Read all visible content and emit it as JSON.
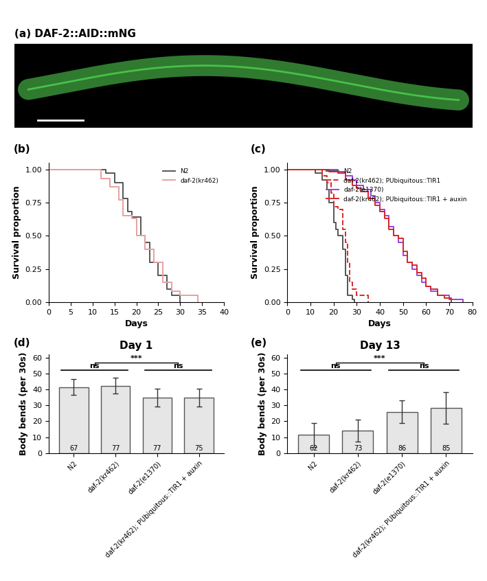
{
  "chart_data": [
    {
      "type": "image",
      "panel": "(a)",
      "title": "DAF-2::AID::mNG"
    },
    {
      "type": "step",
      "panel": "(b)",
      "xlabel": "Days",
      "ylabel": "Survival proportion",
      "xlim": [
        0,
        40
      ],
      "xticks": [
        0,
        5,
        10,
        15,
        20,
        25,
        30,
        35,
        40
      ],
      "ylim": [
        0,
        1.05
      ],
      "yticks": [
        {
          "value": 0,
          "label": "0.00"
        },
        {
          "value": 0.25,
          "label": "0.25"
        },
        {
          "value": 0.5,
          "label": "0.50"
        },
        {
          "value": 0.75,
          "label": "0.75"
        },
        {
          "value": 1.0,
          "label": "1.00"
        }
      ],
      "legend": "upper right",
      "series": [
        {
          "name": "N2",
          "color": "#555555",
          "line_style": "solid",
          "x": [
            0,
            12,
            13,
            15,
            17,
            18,
            19,
            21,
            22,
            23,
            25,
            27,
            28,
            30
          ],
          "values": [
            1.0,
            1.0,
            0.97,
            0.9,
            0.78,
            0.68,
            0.64,
            0.5,
            0.45,
            0.3,
            0.2,
            0.1,
            0.05,
            0.0
          ]
        },
        {
          "name": "daf-2(kr462)",
          "color": "#e8a0a0",
          "line_style": "solid",
          "x": [
            0,
            11,
            12,
            14,
            16,
            17,
            19,
            20,
            22,
            24,
            26,
            28,
            30,
            34
          ],
          "values": [
            1.0,
            1.0,
            0.93,
            0.87,
            0.77,
            0.65,
            0.63,
            0.5,
            0.4,
            0.3,
            0.15,
            0.08,
            0.05,
            0.0
          ]
        }
      ]
    },
    {
      "type": "step",
      "panel": "(c)",
      "xlabel": "Days",
      "ylabel": "Survival proportion",
      "xlim": [
        0,
        80
      ],
      "xticks": [
        0,
        10,
        20,
        30,
        40,
        50,
        60,
        70,
        80
      ],
      "ylim": [
        0,
        1.05
      ],
      "yticks": [
        {
          "value": 0,
          "label": "0.00"
        },
        {
          "value": 0.25,
          "label": "0.25"
        },
        {
          "value": 0.5,
          "label": "0.50"
        },
        {
          "value": 0.75,
          "label": "0.75"
        },
        {
          "value": 1.0,
          "label": "1.00"
        }
      ],
      "legend": "upper right",
      "series": [
        {
          "name": "N2",
          "color": "#555555",
          "line_style": "solid",
          "x": [
            0,
            10,
            12,
            15,
            17,
            18,
            20,
            21,
            22,
            24,
            25,
            26,
            28,
            29
          ],
          "values": [
            1.0,
            1.0,
            0.97,
            0.92,
            0.85,
            0.75,
            0.6,
            0.55,
            0.5,
            0.4,
            0.2,
            0.05,
            0.02,
            0.0
          ]
        },
        {
          "name": "daf-2(kr462); PUbiquitous::TIR1",
          "color": "#d62728",
          "line_style": "dashed",
          "x": [
            0,
            13,
            15,
            17,
            19,
            20,
            22,
            24,
            25,
            26,
            27,
            28,
            30,
            35
          ],
          "values": [
            1.0,
            1.0,
            0.95,
            0.9,
            0.82,
            0.72,
            0.7,
            0.55,
            0.45,
            0.3,
            0.15,
            0.1,
            0.05,
            0.0
          ]
        },
        {
          "name": "daf-2(e1370)",
          "color": "#9b3fe0",
          "line_style": "solid",
          "x": [
            0,
            20,
            22,
            25,
            28,
            30,
            33,
            36,
            38,
            40,
            42,
            44,
            46,
            48,
            50,
            52,
            54,
            56,
            58,
            60,
            62,
            65,
            70,
            76
          ],
          "values": [
            1.0,
            1.0,
            0.98,
            0.95,
            0.92,
            0.88,
            0.85,
            0.8,
            0.75,
            0.7,
            0.65,
            0.57,
            0.5,
            0.45,
            0.35,
            0.3,
            0.25,
            0.2,
            0.15,
            0.12,
            0.08,
            0.05,
            0.02,
            0.0
          ]
        },
        {
          "name": "daf-2(kr462); PUbiquitous::TIR1 + auxin",
          "color": "#d62728",
          "line_style": "solid",
          "x": [
            0,
            15,
            18,
            22,
            25,
            28,
            30,
            32,
            35,
            38,
            40,
            42,
            44,
            46,
            48,
            50,
            52,
            54,
            56,
            58,
            60,
            62,
            65,
            68,
            71
          ],
          "values": [
            1.0,
            1.0,
            0.98,
            0.97,
            0.92,
            0.88,
            0.86,
            0.83,
            0.78,
            0.73,
            0.68,
            0.63,
            0.55,
            0.5,
            0.48,
            0.38,
            0.3,
            0.28,
            0.22,
            0.18,
            0.12,
            0.1,
            0.05,
            0.03,
            0.0
          ]
        }
      ]
    },
    {
      "type": "bar",
      "panel": "(d)",
      "title": "Day 1",
      "ylabel": "Body bends (per 30s)",
      "categories": [
        "N2",
        "daf-2(kr462)",
        "daf-2(e1370)",
        "daf-2(kr462); PUbiquitous::TIR1 + auxin"
      ],
      "values": [
        41.5,
        42.3,
        34.8,
        34.8
      ],
      "errors": [
        5.0,
        5.0,
        5.5,
        5.5
      ],
      "n": [
        67,
        77,
        77,
        75
      ],
      "color": "#e6e6e6",
      "ylim": [
        0,
        62
      ],
      "yticks": [
        0,
        10,
        20,
        30,
        40,
        50,
        60
      ],
      "annotations": [
        {
          "text": "ns",
          "between": [
            0,
            1
          ]
        },
        {
          "text": "ns",
          "between": [
            2,
            3
          ]
        },
        {
          "text": "***",
          "between": [
            [
              0,
              1
            ],
            [
              2,
              3
            ]
          ]
        }
      ]
    },
    {
      "type": "bar",
      "panel": "(e)",
      "title": "Day 13",
      "ylabel": "Body bends (per 30s)",
      "categories": [
        "N2",
        "daf-2(kr462)",
        "daf-2(e1370)",
        "daf-2(kr462); PUbiquitous::TIR1 + auxin"
      ],
      "values": [
        11.5,
        14.2,
        26.0,
        28.5
      ],
      "errors": [
        7.5,
        7.0,
        7.0,
        10.0
      ],
      "n": [
        62,
        73,
        86,
        85
      ],
      "color": "#e6e6e6",
      "ylim": [
        0,
        62
      ],
      "yticks": [
        0,
        10,
        20,
        30,
        40,
        50,
        60
      ],
      "annotations": [
        {
          "text": "ns",
          "between": [
            0,
            1
          ]
        },
        {
          "text": "ns",
          "between": [
            2,
            3
          ]
        },
        {
          "text": "***",
          "between": [
            [
              0,
              1
            ],
            [
              2,
              3
            ]
          ]
        }
      ]
    }
  ]
}
